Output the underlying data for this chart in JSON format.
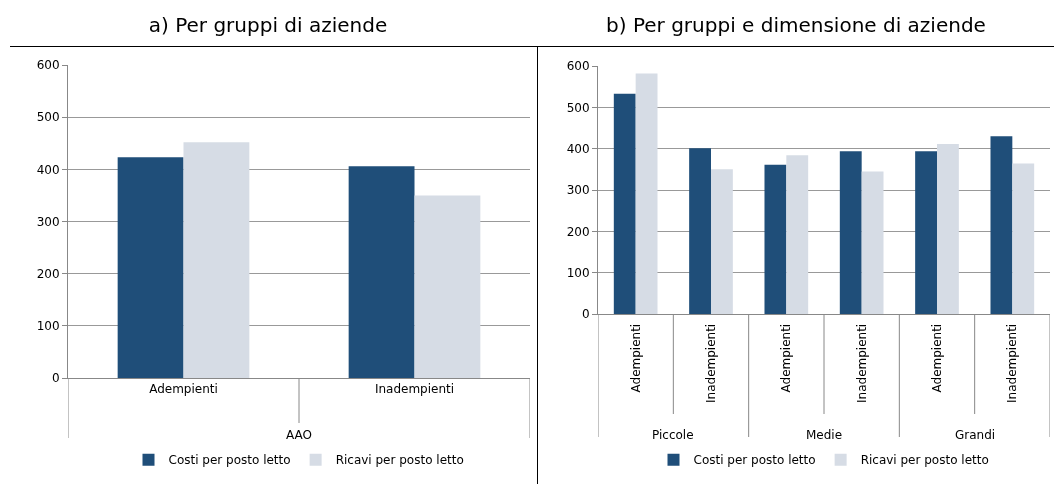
{
  "chart_data": [
    {
      "type": "bar",
      "title": "a) Per gruppi di aziende",
      "categories": [
        "Adempienti",
        "Inadempienti"
      ],
      "series": [
        {
          "name": "Costi per posto letto",
          "color": "#1f4e79",
          "values": [
            423,
            406
          ]
        },
        {
          "name": "Ricavi per posto letto",
          "color": "#d6dce5",
          "values": [
            452,
            350
          ]
        }
      ],
      "ylim": [
        0,
        600
      ],
      "yticks": [
        0,
        100,
        200,
        300,
        400,
        500,
        600
      ],
      "grid": "y",
      "legend": "bottom",
      "annotations": [
        "AAO"
      ]
    },
    {
      "type": "bar",
      "title": "b) Per gruppi e dimensione di aziende",
      "categories": [
        "Adempienti",
        "Inadempienti",
        "Adempienti",
        "Inadempienti",
        "Adempienti",
        "Inadempienti"
      ],
      "series": [
        {
          "name": "Costi per posto letto",
          "color": "#1f4e79",
          "values": [
            533,
            401,
            361,
            394,
            394,
            430
          ]
        },
        {
          "name": "Ricavi per posto letto",
          "color": "#d6dce5",
          "values": [
            582,
            350,
            384,
            345,
            411,
            364
          ]
        }
      ],
      "ylim": [
        0,
        600
      ],
      "yticks": [
        0,
        100,
        200,
        300,
        400,
        500,
        600
      ],
      "grid": "y",
      "legend": "bottom",
      "annotations": [
        "Piccole",
        "Medie",
        "Grandi"
      ]
    }
  ]
}
